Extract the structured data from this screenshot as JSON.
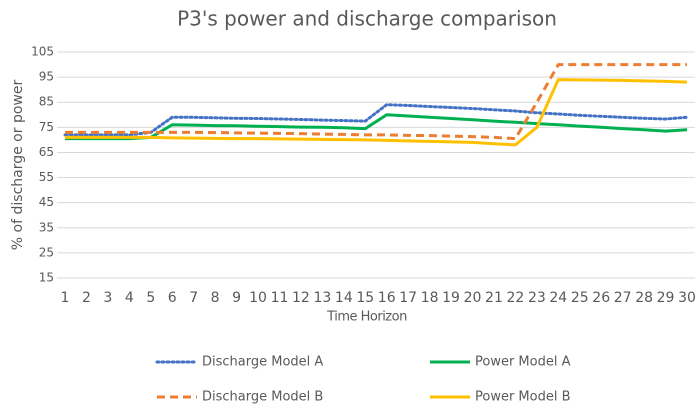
{
  "chart_data": {
    "type": "line",
    "title": "P3's power and discharge comparison",
    "x_label": "Time Horizon",
    "y_label": "% of discharge or power",
    "categories": [
      "1",
      "2",
      "3",
      "4",
      "5",
      "6",
      "7",
      "8",
      "9",
      "10",
      "11",
      "12",
      "13",
      "14",
      "15",
      "16",
      "17",
      "18",
      "19",
      "20",
      "21",
      "22",
      "23",
      "24",
      "25",
      "26",
      "27",
      "28",
      "29",
      "30"
    ],
    "ylim": [
      15,
      105
    ],
    "yticks": [
      15,
      25,
      35,
      45,
      55,
      65,
      75,
      85,
      95,
      105
    ],
    "grid": true,
    "legend": "bottom",
    "series": [
      {
        "name": "Discharge Model A",
        "color": "#4472c4",
        "style": "dotted",
        "values": [
          72,
          72,
          72,
          72,
          73,
          79,
          79,
          78.8,
          78.6,
          78.5,
          78.3,
          78.1,
          77.9,
          77.7,
          77.5,
          84,
          83.7,
          83.3,
          82.9,
          82.5,
          82,
          81.5,
          80.8,
          80.3,
          79.8,
          79.4,
          79,
          78.6,
          78.3,
          79
        ]
      },
      {
        "name": "Power Model A",
        "color": "#00b050",
        "style": "solid",
        "values": [
          70.5,
          70.5,
          70.5,
          70.5,
          71,
          76,
          75.9,
          75.7,
          75.6,
          75.4,
          75.3,
          75.1,
          75,
          74.8,
          74.5,
          80,
          79.5,
          79,
          78.5,
          78,
          77.5,
          77,
          76.5,
          76,
          75.5,
          75,
          74.5,
          74,
          73.5,
          74
        ]
      },
      {
        "name": "Discharge Model B",
        "color": "#ed7d31",
        "style": "dashed",
        "values": [
          73,
          73,
          73,
          73,
          73,
          73,
          73,
          72.9,
          72.8,
          72.7,
          72.6,
          72.5,
          72.3,
          72.2,
          72,
          72,
          71.8,
          71.7,
          71.5,
          71.3,
          71,
          70.5,
          85,
          100,
          100,
          100,
          100,
          100,
          100,
          100
        ]
      },
      {
        "name": "Power Model B",
        "color": "#ffc000",
        "style": "solid",
        "values": [
          71,
          71,
          71,
          71,
          71,
          70.8,
          70.7,
          70.6,
          70.5,
          70.5,
          70.4,
          70.3,
          70.2,
          70.1,
          70,
          69.8,
          69.6,
          69.4,
          69.2,
          69,
          68.5,
          68,
          75,
          94,
          93.9,
          93.8,
          93.7,
          93.5,
          93.3,
          93
        ]
      }
    ]
  }
}
